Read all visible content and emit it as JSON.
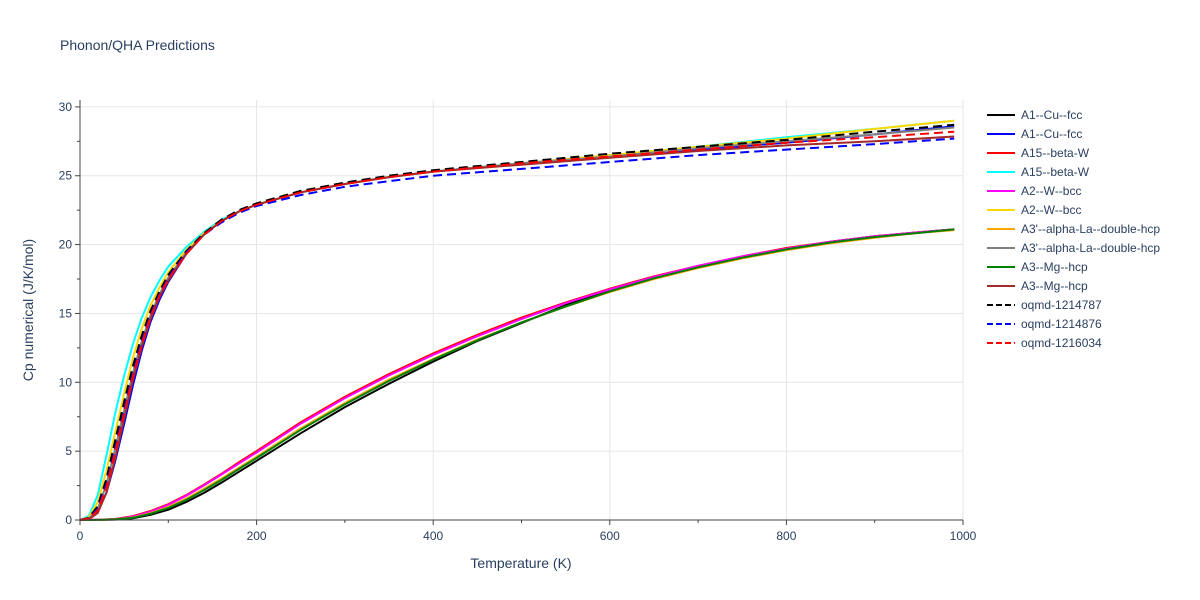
{
  "chart_data": {
    "type": "line",
    "title": "Phonon/QHA Predictions",
    "xlabel": "Temperature (K)",
    "ylabel": "Cp numerical (J/K/mol)",
    "xlim": [
      0,
      1000
    ],
    "ylim": [
      0,
      30.5
    ],
    "xticks": [
      0,
      200,
      400,
      600,
      800,
      1000
    ],
    "yticks": [
      0,
      5,
      10,
      15,
      20,
      25,
      30
    ],
    "grid": true,
    "legend_position": "right",
    "series": [
      {
        "name": "A1--Cu--fcc",
        "color": "#000000",
        "dash": "solid",
        "group": "low",
        "x": [
          0,
          20,
          40,
          60,
          80,
          100,
          120,
          140,
          160,
          180,
          200,
          250,
          300,
          350,
          400,
          450,
          500,
          550,
          600,
          650,
          700,
          750,
          800,
          850,
          900,
          950,
          990
        ],
        "y": [
          0,
          0.01,
          0.03,
          0.12,
          0.38,
          0.75,
          1.3,
          1.95,
          2.7,
          3.5,
          4.3,
          6.3,
          8.2,
          9.9,
          11.5,
          13.0,
          14.3,
          15.6,
          16.7,
          17.6,
          18.4,
          19.1,
          19.7,
          20.2,
          20.6,
          20.9,
          21.1
        ]
      },
      {
        "name": "A1--Cu--fcc",
        "color": "#0000ff",
        "dash": "solid",
        "group": "high",
        "x": [
          0,
          10,
          20,
          30,
          40,
          50,
          60,
          70,
          80,
          90,
          100,
          120,
          140,
          160,
          180,
          200,
          250,
          300,
          350,
          400,
          500,
          600,
          700,
          800,
          900,
          990
        ],
        "y": [
          0,
          0.1,
          0.6,
          2.0,
          4.3,
          7.0,
          9.8,
          12.3,
          14.4,
          16.0,
          17.3,
          19.3,
          20.7,
          21.7,
          22.4,
          22.9,
          23.8,
          24.4,
          24.9,
          25.3,
          25.9,
          26.4,
          26.9,
          27.4,
          28.0,
          28.6
        ]
      },
      {
        "name": "A15--beta-W",
        "color": "#ff0000",
        "dash": "solid",
        "group": "low",
        "x": [
          0,
          20,
          40,
          60,
          80,
          100,
          120,
          140,
          160,
          180,
          200,
          250,
          300,
          350,
          400,
          450,
          500,
          550,
          600,
          650,
          700,
          750,
          800,
          850,
          900,
          950,
          990
        ],
        "y": [
          0,
          0.02,
          0.07,
          0.28,
          0.65,
          1.15,
          1.8,
          2.55,
          3.35,
          4.2,
          5.0,
          7.1,
          8.95,
          10.6,
          12.1,
          13.45,
          14.7,
          15.8,
          16.8,
          17.7,
          18.45,
          19.15,
          19.75,
          20.2,
          20.6,
          20.9,
          21.1
        ]
      },
      {
        "name": "A15--beta-W",
        "color": "#00ffff",
        "dash": "solid",
        "group": "high",
        "x": [
          0,
          10,
          20,
          30,
          40,
          50,
          60,
          70,
          80,
          90,
          100,
          120,
          140,
          160,
          180,
          200,
          250,
          300,
          350,
          400,
          500,
          600,
          700,
          800,
          900,
          990
        ],
        "y": [
          0,
          0.3,
          1.8,
          4.7,
          7.8,
          10.5,
          12.8,
          14.7,
          16.2,
          17.4,
          18.4,
          19.8,
          20.9,
          21.8,
          22.4,
          22.9,
          23.8,
          24.4,
          24.9,
          25.3,
          25.9,
          26.5,
          27.1,
          27.8,
          28.4,
          29.0
        ]
      },
      {
        "name": "A2--W--bcc",
        "color": "#ff00ff",
        "dash": "solid",
        "group": "low",
        "x": [
          0,
          20,
          40,
          60,
          80,
          100,
          120,
          140,
          160,
          180,
          200,
          250,
          300,
          350,
          400,
          450,
          500,
          550,
          600,
          650,
          700,
          750,
          800,
          850,
          900,
          950,
          990
        ],
        "y": [
          0,
          0.02,
          0.06,
          0.25,
          0.6,
          1.1,
          1.75,
          2.5,
          3.3,
          4.1,
          4.9,
          7.0,
          8.85,
          10.5,
          12.0,
          13.35,
          14.6,
          15.75,
          16.75,
          17.65,
          18.45,
          19.15,
          19.7,
          20.2,
          20.6,
          20.9,
          21.1
        ]
      },
      {
        "name": "A2--W--bcc",
        "color": "#ffd700",
        "dash": "solid",
        "group": "high",
        "x": [
          0,
          10,
          20,
          30,
          40,
          50,
          60,
          70,
          80,
          90,
          100,
          120,
          140,
          160,
          180,
          200,
          250,
          300,
          350,
          400,
          500,
          600,
          700,
          800,
          900,
          990
        ],
        "y": [
          0,
          0.2,
          1.3,
          3.6,
          6.4,
          9.2,
          11.8,
          13.9,
          15.6,
          16.9,
          18.0,
          19.6,
          20.8,
          21.7,
          22.4,
          22.9,
          23.8,
          24.4,
          24.9,
          25.3,
          25.9,
          26.5,
          27.1,
          27.7,
          28.4,
          29.0
        ]
      },
      {
        "name": "A3'--alpha-La--double-hcp",
        "color": "#ffa500",
        "dash": "solid",
        "group": "low",
        "x": [
          0,
          20,
          40,
          60,
          80,
          100,
          120,
          140,
          160,
          180,
          200,
          250,
          300,
          350,
          400,
          450,
          500,
          550,
          600,
          650,
          700,
          750,
          800,
          850,
          900,
          950,
          990
        ],
        "y": [
          0,
          0.01,
          0.04,
          0.18,
          0.5,
          0.95,
          1.55,
          2.25,
          3.0,
          3.8,
          4.6,
          6.65,
          8.5,
          10.2,
          11.7,
          13.1,
          14.35,
          15.5,
          16.55,
          17.5,
          18.3,
          19.0,
          19.6,
          20.1,
          20.5,
          20.85,
          21.05
        ]
      },
      {
        "name": "A3'--alpha-La--double-hcp",
        "color": "#808080",
        "dash": "solid",
        "group": "high",
        "x": [
          0,
          10,
          20,
          30,
          40,
          50,
          60,
          70,
          80,
          90,
          100,
          120,
          140,
          160,
          180,
          200,
          250,
          300,
          350,
          400,
          500,
          600,
          700,
          800,
          900,
          990
        ],
        "y": [
          0,
          0.1,
          0.8,
          2.6,
          5.2,
          8.0,
          10.7,
          13.0,
          14.9,
          16.4,
          17.6,
          19.4,
          20.7,
          21.7,
          22.4,
          22.9,
          23.8,
          24.4,
          24.9,
          25.3,
          25.9,
          26.4,
          27.0,
          27.5,
          28.0,
          28.5
        ]
      },
      {
        "name": "A3--Mg--hcp",
        "color": "#008000",
        "dash": "solid",
        "group": "low",
        "x": [
          0,
          20,
          40,
          60,
          80,
          100,
          120,
          140,
          160,
          180,
          200,
          250,
          300,
          350,
          400,
          450,
          500,
          550,
          600,
          650,
          700,
          750,
          800,
          850,
          900,
          950,
          990
        ],
        "y": [
          0,
          0.01,
          0.04,
          0.16,
          0.46,
          0.88,
          1.45,
          2.15,
          2.9,
          3.7,
          4.5,
          6.55,
          8.4,
          10.1,
          11.65,
          13.05,
          14.35,
          15.5,
          16.6,
          17.55,
          18.35,
          19.05,
          19.65,
          20.15,
          20.55,
          20.85,
          21.1
        ]
      },
      {
        "name": "A3--Mg--hcp",
        "color": "#a52a2a",
        "dash": "solid",
        "group": "high",
        "x": [
          0,
          10,
          20,
          30,
          40,
          50,
          60,
          70,
          80,
          90,
          100,
          120,
          140,
          160,
          180,
          200,
          250,
          300,
          350,
          400,
          500,
          600,
          700,
          800,
          900,
          990
        ],
        "y": [
          0,
          0.05,
          0.5,
          2.0,
          4.5,
          7.4,
          10.2,
          12.6,
          14.6,
          16.2,
          17.4,
          19.3,
          20.7,
          21.7,
          22.4,
          22.9,
          23.8,
          24.4,
          24.9,
          25.3,
          25.8,
          26.3,
          26.8,
          27.2,
          27.5,
          27.85
        ]
      },
      {
        "name": "oqmd-1214787",
        "color": "#000000",
        "dash": "dash",
        "group": "high",
        "x": [
          0,
          10,
          20,
          30,
          40,
          50,
          60,
          70,
          80,
          90,
          100,
          120,
          140,
          160,
          180,
          200,
          250,
          300,
          350,
          400,
          500,
          600,
          700,
          800,
          900,
          990
        ],
        "y": [
          0,
          0.15,
          1.0,
          3.0,
          5.8,
          8.6,
          11.2,
          13.4,
          15.2,
          16.6,
          17.8,
          19.5,
          20.8,
          21.8,
          22.5,
          23.0,
          23.9,
          24.5,
          25.0,
          25.4,
          26.0,
          26.6,
          27.1,
          27.6,
          28.2,
          28.7
        ]
      },
      {
        "name": "oqmd-1214876",
        "color": "#0000ff",
        "dash": "dash",
        "group": "high",
        "x": [
          0,
          10,
          20,
          30,
          40,
          50,
          60,
          70,
          80,
          90,
          100,
          120,
          140,
          160,
          180,
          200,
          250,
          300,
          350,
          400,
          500,
          600,
          700,
          800,
          900,
          990
        ],
        "y": [
          0,
          0.12,
          0.8,
          2.6,
          5.2,
          8.0,
          10.7,
          13.0,
          14.9,
          16.4,
          17.6,
          19.4,
          20.7,
          21.6,
          22.3,
          22.8,
          23.6,
          24.2,
          24.6,
          25.0,
          25.5,
          26.0,
          26.5,
          26.9,
          27.3,
          27.7
        ]
      },
      {
        "name": "oqmd-1216034",
        "color": "#ff0000",
        "dash": "dash",
        "group": "high",
        "x": [
          0,
          10,
          20,
          30,
          40,
          50,
          60,
          70,
          80,
          90,
          100,
          120,
          140,
          160,
          180,
          200,
          250,
          300,
          350,
          400,
          500,
          600,
          700,
          800,
          900,
          990
        ],
        "y": [
          0,
          0.1,
          0.7,
          2.4,
          5.0,
          7.8,
          10.5,
          12.8,
          14.8,
          16.3,
          17.5,
          19.3,
          20.7,
          21.7,
          22.4,
          22.9,
          23.8,
          24.4,
          24.9,
          25.3,
          25.9,
          26.4,
          26.9,
          27.4,
          27.8,
          28.2
        ]
      }
    ]
  }
}
